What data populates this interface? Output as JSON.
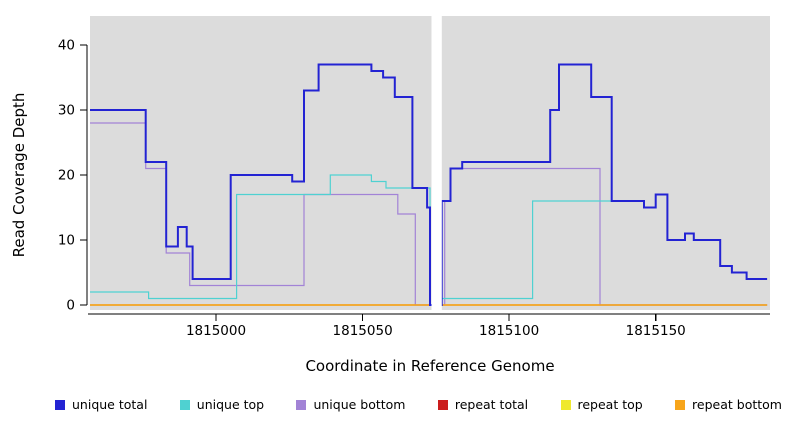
{
  "chart_data": {
    "type": "line",
    "subtype": "step",
    "title": "",
    "xlabel": "Coordinate in Reference Genome",
    "ylabel": "Read Coverage Depth",
    "xlim": [
      1814957,
      1815189
    ],
    "x_end": 1815188,
    "ylim": [
      0,
      40
    ],
    "xticks": [
      1815000,
      1815050,
      1815100,
      1815150
    ],
    "yticks": [
      0,
      10,
      20,
      30,
      40
    ],
    "grid": false,
    "panel_background": "#DCDCDC",
    "gap_band": {
      "from": 1815073.5,
      "to": 1815077,
      "color": "#FFFFFF"
    },
    "series": [
      {
        "name": "unique total",
        "color": "#2323D3",
        "width": 2,
        "steps": [
          [
            1814957,
            30
          ],
          [
            1814976,
            22
          ],
          [
            1814983,
            9
          ],
          [
            1814987,
            12
          ],
          [
            1814990,
            9
          ],
          [
            1814992,
            4
          ],
          [
            1815005,
            20
          ],
          [
            1815026,
            19
          ],
          [
            1815030,
            33
          ],
          [
            1815035,
            37
          ],
          [
            1815053,
            36
          ],
          [
            1815057,
            35
          ],
          [
            1815061,
            32
          ],
          [
            1815067,
            18
          ],
          [
            1815072,
            15
          ],
          [
            1815073,
            0
          ],
          [
            1815077,
            16
          ],
          [
            1815080,
            21
          ],
          [
            1815084,
            22
          ],
          [
            1815114,
            30
          ],
          [
            1815117,
            37
          ],
          [
            1815128,
            32
          ],
          [
            1815135,
            16
          ],
          [
            1815146,
            15
          ],
          [
            1815150,
            17
          ],
          [
            1815154,
            10
          ],
          [
            1815160,
            11
          ],
          [
            1815163,
            10
          ],
          [
            1815172,
            6
          ],
          [
            1815176,
            5
          ],
          [
            1815181,
            4
          ]
        ]
      },
      {
        "name": "unique top",
        "color": "#4FD1D1",
        "width": 1.2,
        "steps": [
          [
            1814957,
            2
          ],
          [
            1814977,
            1
          ],
          [
            1815007,
            17
          ],
          [
            1815039,
            20
          ],
          [
            1815053,
            19
          ],
          [
            1815058,
            18
          ],
          [
            1815073,
            0
          ],
          [
            1815077,
            1
          ],
          [
            1815108,
            16
          ],
          [
            1815146,
            15
          ],
          [
            1815150,
            17
          ],
          [
            1815154,
            10
          ],
          [
            1815160,
            11
          ],
          [
            1815163,
            10
          ],
          [
            1815172,
            6
          ],
          [
            1815176,
            5
          ],
          [
            1815181,
            4
          ]
        ]
      },
      {
        "name": "unique bottom",
        "color": "#A283D6",
        "width": 1.2,
        "steps": [
          [
            1814957,
            28
          ],
          [
            1814976,
            21
          ],
          [
            1814983,
            8
          ],
          [
            1814991,
            3
          ],
          [
            1815030,
            17
          ],
          [
            1815062,
            14
          ],
          [
            1815068,
            0
          ],
          [
            1815078,
            16
          ],
          [
            1815080,
            21
          ],
          [
            1815131,
            0
          ]
        ]
      },
      {
        "name": "repeat total",
        "color": "#CB1D1D",
        "width": 1.2,
        "steps": [
          [
            1814957,
            0
          ]
        ]
      },
      {
        "name": "repeat top",
        "color": "#EFE92E",
        "width": 1.2,
        "steps": [
          [
            1814957,
            0
          ]
        ]
      },
      {
        "name": "repeat bottom",
        "color": "#F7A51B",
        "width": 1.4,
        "steps": [
          [
            1814957,
            0
          ]
        ]
      }
    ],
    "draw_order": [
      "repeat total",
      "repeat top",
      "unique bottom",
      "repeat bottom",
      "unique top",
      "unique total"
    ],
    "legend": [
      "unique total",
      "unique top",
      "unique bottom",
      "repeat total",
      "repeat top",
      "repeat bottom"
    ],
    "legend_position": "bottom"
  }
}
